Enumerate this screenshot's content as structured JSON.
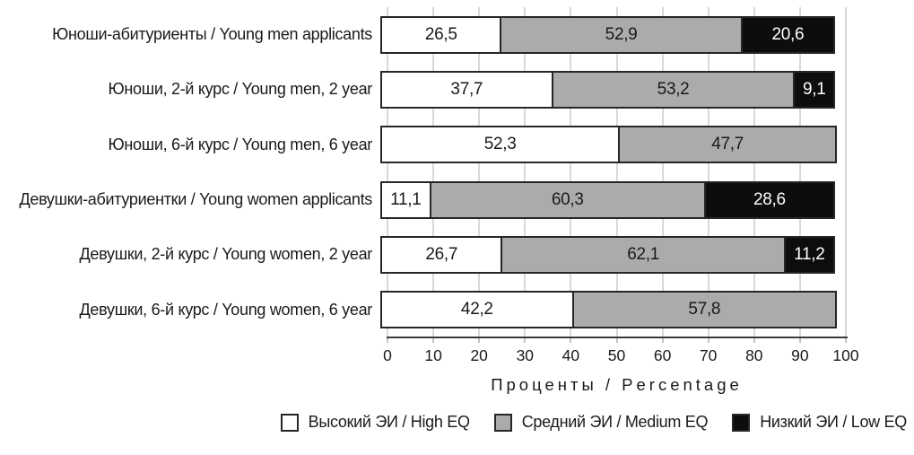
{
  "chart_data": {
    "type": "bar",
    "orientation": "horizontal",
    "stacked": true,
    "title": "",
    "xlabel": "Проценты / Percentage",
    "ylabel": "",
    "xlim": [
      0,
      100
    ],
    "x_ticks": [
      0,
      10,
      20,
      30,
      40,
      50,
      60,
      70,
      80,
      90,
      100
    ],
    "grid": "vertical",
    "legend_position": "bottom",
    "categories": [
      "Юноши-абитуриенты / Young men applicants",
      "Юноши, 2-й курс / Young men, 2 year",
      "Юноши, 6-й курс / Young men, 6 year",
      "Девушки-абитуриентки / Young women applicants",
      "Девушки, 2-й курс / Young women, 2 year",
      "Девушки, 6-й курс / Young women, 6 year"
    ],
    "series": [
      {
        "key": "high-eq",
        "name": "Высокий ЭИ / High EQ",
        "color": "#ffffff",
        "text_color": "#1a1a1a",
        "values": [
          26.5,
          37.7,
          52.3,
          11.1,
          26.7,
          42.2
        ],
        "labels": [
          "26,5",
          "37,7",
          "52,3",
          "11,1",
          "26,7",
          "42,2"
        ]
      },
      {
        "key": "medium-eq",
        "name": "Средний ЭИ / Medium EQ",
        "color": "#ababab",
        "text_color": "#1a1a1a",
        "values": [
          52.9,
          53.2,
          47.7,
          60.3,
          62.1,
          57.8
        ],
        "labels": [
          "52,9",
          "53,2",
          "47,7",
          "60,3",
          "62,1",
          "57,8"
        ]
      },
      {
        "key": "low-eq",
        "name": "Низкий ЭИ / Low EQ",
        "color": "#0d0d0d",
        "text_color": "#ffffff",
        "values": [
          20.6,
          9.1,
          null,
          28.6,
          11.2,
          null
        ],
        "labels": [
          "20,6",
          "9,1",
          null,
          "28,6",
          "11,2",
          null
        ]
      }
    ],
    "colors": {
      "bar_border": "#262626",
      "gridline": "#d9d9d9",
      "axis_line": "#3a3a3a",
      "background": "#ffffff"
    }
  }
}
